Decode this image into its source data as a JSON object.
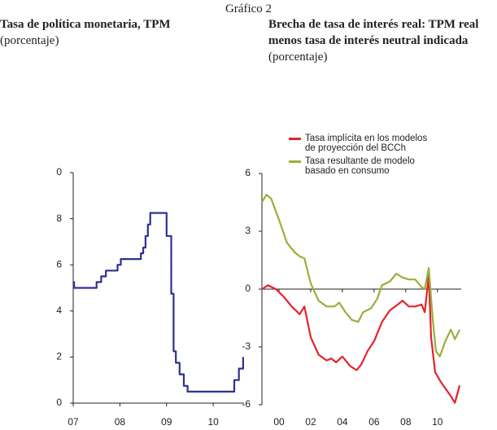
{
  "header": "Gráfico 2",
  "chart_data": [
    {
      "type": "line",
      "title": "Tasa de política monetaria, TPM",
      "subtitle": "(porcentaje)",
      "xlim": [
        2007,
        2010.66
      ],
      "ylim": [
        0,
        10
      ],
      "xticks": [
        {
          "value": 2007,
          "label": "07"
        },
        {
          "value": 2008,
          "label": "08"
        },
        {
          "value": 2009,
          "label": "09"
        },
        {
          "value": 2010,
          "label": "10"
        }
      ],
      "yticks": [
        0,
        2,
        4,
        6,
        8,
        {
          "value": 10,
          "label": "0"
        }
      ],
      "series": [
        {
          "color": "#2e3192",
          "x": [
            2007,
            2007.02,
            2007.02,
            2007.5,
            2007.5,
            2007.6,
            2007.6,
            2007.7,
            2007.7,
            2007.95,
            2007.95,
            2008.02,
            2008.02,
            2008.45,
            2008.45,
            2008.5,
            2008.5,
            2008.55,
            2008.55,
            2008.6,
            2008.6,
            2008.65,
            2008.65,
            2009.0,
            2009.0,
            2009.1,
            2009.1,
            2009.15,
            2009.15,
            2009.2,
            2009.2,
            2009.28,
            2009.28,
            2009.37,
            2009.37,
            2009.45,
            2009.45,
            2010.45,
            2010.45,
            2010.55,
            2010.55,
            2010.64,
            2010.64
          ],
          "values": [
            5.25,
            5.25,
            5.0,
            5.0,
            5.25,
            5.25,
            5.5,
            5.5,
            5.75,
            5.75,
            6.0,
            6.0,
            6.25,
            6.25,
            6.5,
            6.5,
            6.75,
            6.75,
            7.25,
            7.25,
            7.75,
            7.75,
            8.25,
            8.25,
            7.25,
            7.25,
            4.75,
            4.75,
            2.25,
            2.25,
            1.75,
            1.75,
            1.25,
            1.25,
            0.75,
            0.75,
            0.5,
            0.5,
            1.0,
            1.0,
            1.5,
            1.5,
            2.0
          ]
        }
      ]
    },
    {
      "type": "line",
      "title": "Brecha de tasa de interés real: TPM real menos tasa de interés neutral indicada",
      "subtitle": "(porcentaje)",
      "xlim": [
        1998.92,
        2011.5
      ],
      "ylim": [
        -6,
        6
      ],
      "xticks": [
        {
          "value": 2000,
          "label": "00"
        },
        {
          "value": 2002,
          "label": "02"
        },
        {
          "value": 2004,
          "label": "04"
        },
        {
          "value": 2006,
          "label": "06"
        },
        {
          "value": 2008,
          "label": "08"
        },
        {
          "value": 2010,
          "label": "10"
        }
      ],
      "yticks": [
        -6,
        -3,
        0,
        3,
        6
      ],
      "series": [
        {
          "name": "Tasa implícita en los modelos de proyección del BCCh",
          "color": "#e3242b",
          "x": [
            1998.92,
            1999.3,
            1999.8,
            2000.3,
            2000.8,
            2001.3,
            2001.6,
            2002.0,
            2002.5,
            2003.0,
            2003.3,
            2003.6,
            2004.0,
            2004.5,
            2004.9,
            2005.2,
            2005.6,
            2006.0,
            2006.5,
            2007.0,
            2007.5,
            2007.8,
            2008.2,
            2008.6,
            2009.0,
            2009.2,
            2009.45,
            2009.6,
            2009.85,
            2010.2,
            2010.8,
            2011.1,
            2011.4
          ],
          "values": [
            0.0,
            0.2,
            0.0,
            -0.4,
            -0.9,
            -1.3,
            -0.9,
            -2.5,
            -3.4,
            -3.7,
            -3.6,
            -3.8,
            -3.5,
            -4.0,
            -4.2,
            -3.9,
            -3.2,
            -2.7,
            -1.7,
            -1.1,
            -0.8,
            -0.6,
            -0.9,
            -0.9,
            -0.8,
            -1.2,
            0.7,
            -2.5,
            -4.3,
            -4.8,
            -5.5,
            -5.9,
            -5.0
          ]
        },
        {
          "name": "Tasa resultante de modelo basado en consumo",
          "color": "#9aaf3a",
          "x": [
            1998.92,
            1999.2,
            1999.5,
            2000.0,
            2000.5,
            2001.0,
            2001.3,
            2001.6,
            2002.0,
            2002.5,
            2003.0,
            2003.5,
            2003.8,
            2004.2,
            2004.6,
            2005.0,
            2005.3,
            2005.8,
            2006.2,
            2006.5,
            2007.0,
            2007.4,
            2007.8,
            2008.2,
            2008.6,
            2009.0,
            2009.2,
            2009.45,
            2009.7,
            2009.9,
            2010.15,
            2010.5,
            2010.85,
            2011.1,
            2011.4
          ],
          "values": [
            4.5,
            4.9,
            4.7,
            3.6,
            2.4,
            1.9,
            1.7,
            1.6,
            0.3,
            -0.6,
            -0.9,
            -0.9,
            -0.7,
            -1.2,
            -1.6,
            -1.7,
            -1.2,
            -1.0,
            -0.5,
            0.2,
            0.4,
            0.8,
            0.6,
            0.5,
            0.5,
            0.1,
            0.0,
            1.1,
            -1.5,
            -3.2,
            -3.5,
            -2.7,
            -2.1,
            -2.6,
            -2.1
          ]
        }
      ]
    }
  ]
}
